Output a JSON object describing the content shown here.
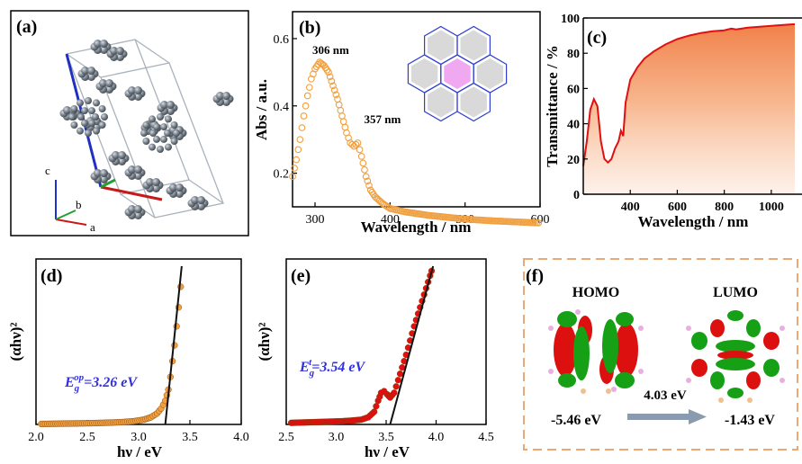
{
  "figure": {
    "colors": {
      "orange": "#f0a040",
      "red": "#e01010",
      "blue_text": "#3030e0",
      "fit_line": "#111111",
      "dashed_border": "#e8a878",
      "arrow": "#8a9bb0",
      "ring_pink": "#f0a8f0"
    },
    "panels": {
      "a": {
        "label": "(a)",
        "axes": {
          "c": "c",
          "b": "b",
          "a": "a"
        },
        "icons": [
          "crystal-structure-icon",
          "axis-triad-icon"
        ]
      },
      "f": {
        "label": "(f)",
        "homo_label": "HOMO",
        "lumo_label": "LUMO",
        "homo_energy": "-5.46 eV",
        "lumo_energy": "-1.43 eV",
        "gap": "4.03 eV",
        "icons": [
          "homo-orbital-icon",
          "lumo-orbital-icon",
          "right-arrow-icon"
        ]
      }
    }
  },
  "chart_data": [
    {
      "panel": "b",
      "label": "(b)",
      "type": "scatter",
      "xlabel": "Wavelength / nm",
      "ylabel": "Abs / a.u.",
      "xlim": [
        270,
        600
      ],
      "ylim": [
        0.1,
        0.68
      ],
      "xticks": [
        300,
        400,
        500,
        600
      ],
      "yticks": [
        0.2,
        0.4,
        0.6
      ],
      "color": "orange",
      "annotations": [
        {
          "text": "306 nm",
          "x": 306,
          "y": 0.53
        },
        {
          "text": "357 nm",
          "x": 357,
          "y": 0.29
        }
      ],
      "inset": "coronene-molecule-icon",
      "points": [
        [
          270,
          0.19
        ],
        [
          275,
          0.24
        ],
        [
          280,
          0.3
        ],
        [
          285,
          0.37
        ],
        [
          290,
          0.43
        ],
        [
          295,
          0.48
        ],
        [
          300,
          0.51
        ],
        [
          306,
          0.53
        ],
        [
          312,
          0.52
        ],
        [
          318,
          0.5
        ],
        [
          324,
          0.46
        ],
        [
          330,
          0.42
        ],
        [
          336,
          0.37
        ],
        [
          342,
          0.32
        ],
        [
          347,
          0.29
        ],
        [
          352,
          0.28
        ],
        [
          357,
          0.29
        ],
        [
          362,
          0.25
        ],
        [
          368,
          0.19
        ],
        [
          374,
          0.15
        ],
        [
          380,
          0.13
        ],
        [
          390,
          0.11
        ],
        [
          400,
          0.095
        ],
        [
          420,
          0.085
        ],
        [
          450,
          0.075
        ],
        [
          480,
          0.068
        ],
        [
          510,
          0.062
        ],
        [
          540,
          0.058
        ],
        [
          570,
          0.055
        ],
        [
          600,
          0.052
        ]
      ]
    },
    {
      "panel": "c",
      "label": "(c)",
      "type": "area",
      "xlabel": "Wavelength / nm",
      "ylabel": "Transmittance / %",
      "xlim": [
        200,
        1100
      ],
      "ylim": [
        0,
        100
      ],
      "xticks": [
        400,
        600,
        800,
        1000
      ],
      "yticks": [
        0,
        20,
        40,
        60,
        80,
        100
      ],
      "color": "red",
      "points": [
        [
          200,
          16
        ],
        [
          215,
          30
        ],
        [
          230,
          48
        ],
        [
          245,
          54
        ],
        [
          260,
          50
        ],
        [
          275,
          30
        ],
        [
          290,
          20
        ],
        [
          305,
          18
        ],
        [
          320,
          20
        ],
        [
          335,
          26
        ],
        [
          350,
          30
        ],
        [
          360,
          36
        ],
        [
          370,
          33
        ],
        [
          380,
          52
        ],
        [
          400,
          65
        ],
        [
          430,
          72
        ],
        [
          460,
          77
        ],
        [
          500,
          81
        ],
        [
          550,
          85
        ],
        [
          600,
          88
        ],
        [
          650,
          90
        ],
        [
          700,
          91.5
        ],
        [
          750,
          92.5
        ],
        [
          800,
          93
        ],
        [
          830,
          94
        ],
        [
          850,
          93.5
        ],
        [
          900,
          94.5
        ],
        [
          950,
          95
        ],
        [
          1000,
          95.5
        ],
        [
          1050,
          96
        ],
        [
          1100,
          96.5
        ]
      ]
    },
    {
      "panel": "d",
      "label": "(d)",
      "type": "scatter",
      "xlabel": "hν / eV",
      "ylabel": "(αhν)²",
      "xlim": [
        2.0,
        4.0
      ],
      "ylim": [
        0,
        1
      ],
      "xticks": [
        2.0,
        2.5,
        3.0,
        3.5,
        4.0
      ],
      "color": "orange",
      "annotation": "E_g^op=3.26 eV",
      "fit_line": [
        [
          3.26,
          0
        ],
        [
          3.42,
          1.0
        ]
      ],
      "points": [
        [
          2.05,
          0.003
        ],
        [
          2.15,
          0.004
        ],
        [
          2.25,
          0.005
        ],
        [
          2.35,
          0.006
        ],
        [
          2.45,
          0.007
        ],
        [
          2.55,
          0.008
        ],
        [
          2.65,
          0.01
        ],
        [
          2.75,
          0.012
        ],
        [
          2.85,
          0.015
        ],
        [
          2.95,
          0.02
        ],
        [
          3.05,
          0.03
        ],
        [
          3.12,
          0.045
        ],
        [
          3.18,
          0.07
        ],
        [
          3.22,
          0.1
        ],
        [
          3.26,
          0.15
        ],
        [
          3.29,
          0.22
        ],
        [
          3.31,
          0.3
        ],
        [
          3.33,
          0.4
        ],
        [
          3.35,
          0.5
        ],
        [
          3.37,
          0.62
        ],
        [
          3.39,
          0.74
        ],
        [
          3.41,
          0.87
        ],
        [
          3.42,
          1.0
        ]
      ]
    },
    {
      "panel": "e",
      "label": "(e)",
      "type": "scatter",
      "xlabel": "hν / eV",
      "ylabel": "(αhν)²",
      "xlim": [
        2.5,
        4.5
      ],
      "ylim": [
        0,
        1
      ],
      "xticks": [
        2.5,
        3.0,
        3.5,
        4.0,
        4.5
      ],
      "color": "red",
      "annotation": "E_g^t=3.54 eV",
      "fit_line": [
        [
          3.54,
          0
        ],
        [
          3.97,
          1.0
        ]
      ],
      "points": [
        [
          2.55,
          0.01
        ],
        [
          2.65,
          0.012
        ],
        [
          2.75,
          0.014
        ],
        [
          2.85,
          0.016
        ],
        [
          2.95,
          0.018
        ],
        [
          3.05,
          0.02
        ],
        [
          3.15,
          0.024
        ],
        [
          3.25,
          0.03
        ],
        [
          3.32,
          0.045
        ],
        [
          3.38,
          0.08
        ],
        [
          3.42,
          0.15
        ],
        [
          3.45,
          0.2
        ],
        [
          3.48,
          0.21
        ],
        [
          3.51,
          0.19
        ],
        [
          3.54,
          0.17
        ],
        [
          3.58,
          0.2
        ],
        [
          3.62,
          0.28
        ],
        [
          3.66,
          0.36
        ],
        [
          3.7,
          0.44
        ],
        [
          3.74,
          0.53
        ],
        [
          3.78,
          0.62
        ],
        [
          3.82,
          0.7
        ],
        [
          3.86,
          0.78
        ],
        [
          3.9,
          0.86
        ],
        [
          3.94,
          0.94
        ],
        [
          3.97,
          1.0
        ]
      ]
    }
  ]
}
